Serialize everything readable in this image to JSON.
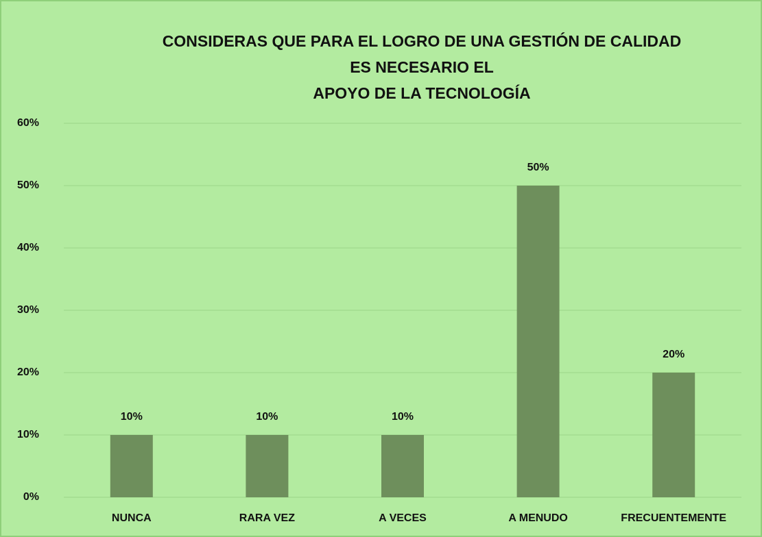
{
  "chart_data": {
    "type": "bar",
    "title": [
      "CONSIDERAS QUE PARA EL LOGRO DE UNA GESTIÓN DE CALIDAD",
      "ES NECESARIO EL",
      "APOYO DE LA TECNOLOGÍA"
    ],
    "categories": [
      "NUNCA",
      "RARA VEZ",
      "A VECES",
      "A MENUDO",
      "FRECUENTEMENTE"
    ],
    "values": [
      10,
      10,
      10,
      50,
      20
    ],
    "value_labels": [
      "10%",
      "10%",
      "10%",
      "50%",
      "20%"
    ],
    "color": "#6e8f5c",
    "ylim": [
      0,
      60
    ],
    "yticks": [
      {
        "value": 0,
        "label": "0%"
      },
      {
        "value": 10,
        "label": "10%"
      },
      {
        "value": 20,
        "label": "20%"
      },
      {
        "value": 30,
        "label": "30%"
      },
      {
        "value": 40,
        "label": "40%"
      },
      {
        "value": 50,
        "label": "50%"
      },
      {
        "value": 60,
        "label": "60%"
      }
    ],
    "grid": true
  }
}
